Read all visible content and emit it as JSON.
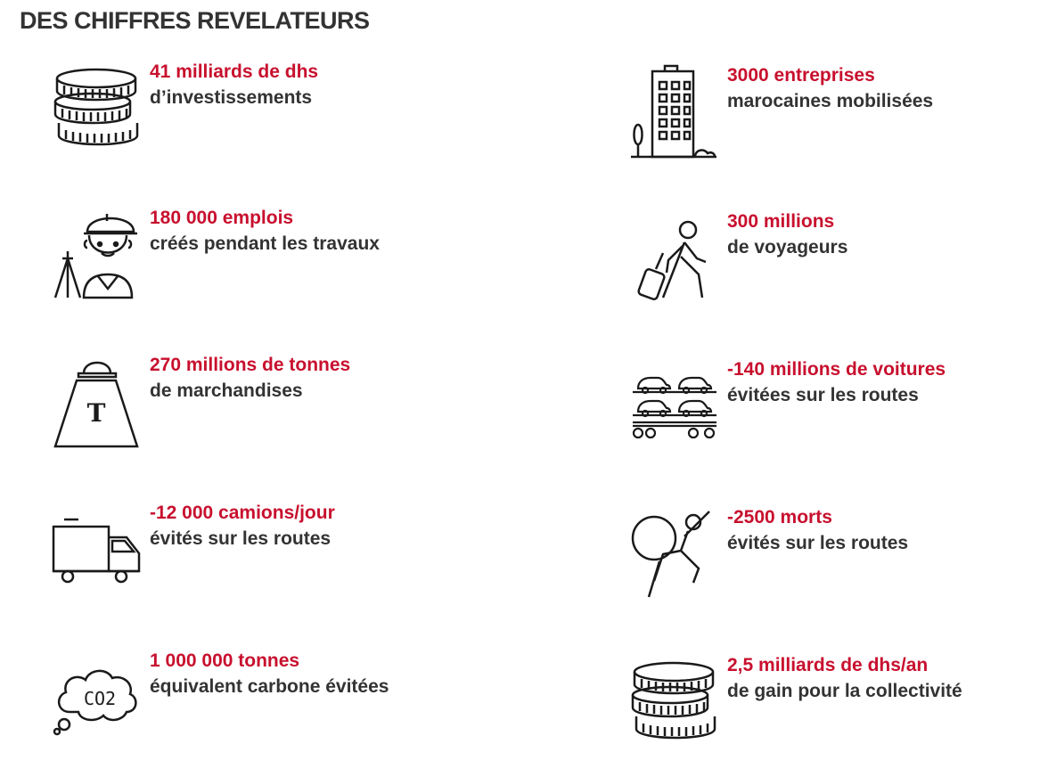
{
  "title": "DES CHIFFRES REVELATEURS",
  "colors": {
    "accent": "#c8102e",
    "text": "#333333",
    "icon": "#1a1a1a"
  },
  "stats": [
    {
      "icon": "coins-stack-icon",
      "figure": "41 milliards de dhs",
      "label": "d’investissements"
    },
    {
      "icon": "office-building-icon",
      "figure": "3000 entreprises",
      "label": "marocaines mobilisées"
    },
    {
      "icon": "construction-worker-icon",
      "figure": "180 000 emplois",
      "label": "créés pendant les travaux"
    },
    {
      "icon": "traveler-with-luggage-icon",
      "figure": "300 millions",
      "label": "de voyageurs"
    },
    {
      "icon": "ton-weight-icon",
      "figure": "270 millions de tonnes",
      "label": "de marchandises",
      "icon_text": "T"
    },
    {
      "icon": "car-transporter-icon",
      "figure": "-140 millions de voitures",
      "label": "évitées sur les routes"
    },
    {
      "icon": "truck-icon",
      "figure": "-12 000 camions/jour",
      "label": "évités sur les routes"
    },
    {
      "icon": "crash-victim-icon",
      "figure": "-2500 morts",
      "label": "évités sur les routes"
    },
    {
      "icon": "co2-cloud-icon",
      "figure": "1 000 000 tonnes",
      "label": "équivalent carbone évitées",
      "icon_text": "CO2"
    },
    {
      "icon": "coins-stack-icon",
      "figure": "2,5 milliards de dhs/an",
      "label": "de gain pour la collectivité"
    }
  ]
}
